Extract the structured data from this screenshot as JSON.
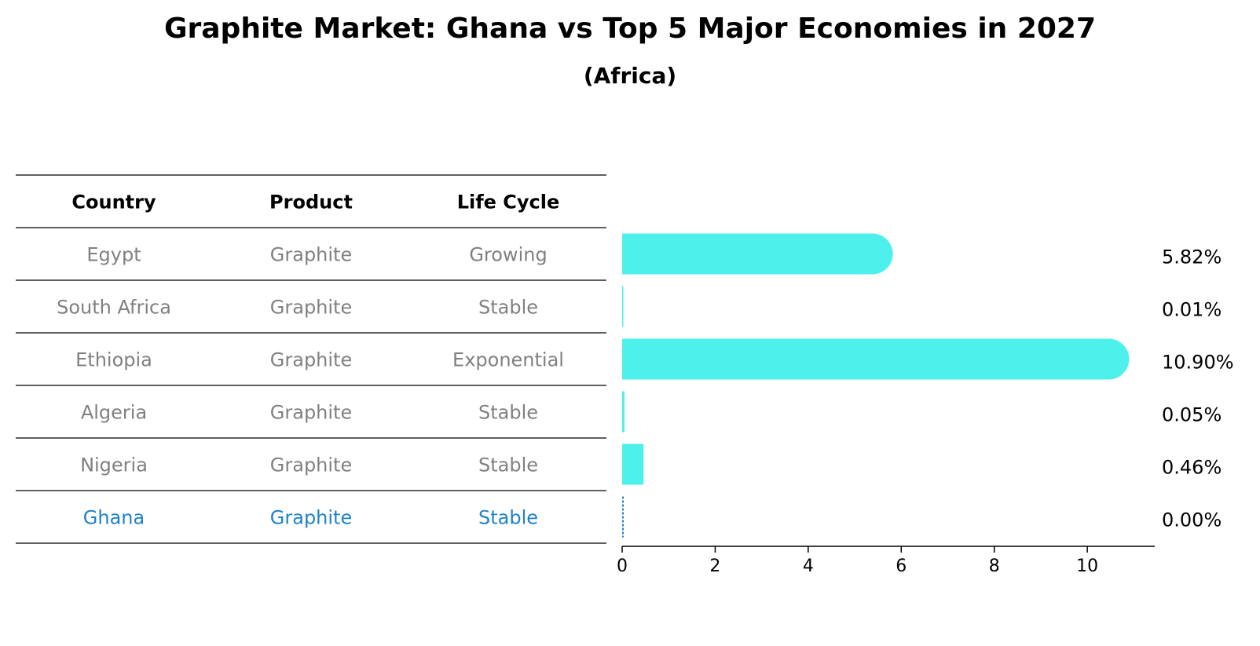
{
  "title": "Graphite Market: Ghana vs Top 5 Major Economies in 2027",
  "subtitle": "(Africa)",
  "table": {
    "headers": [
      "Country",
      "Product",
      "Life Cycle"
    ],
    "rows": [
      {
        "country": "Egypt",
        "product": "Graphite",
        "life_cycle": "Growing",
        "highlight": false
      },
      {
        "country": "South Africa",
        "product": "Graphite",
        "life_cycle": "Stable",
        "highlight": false
      },
      {
        "country": "Ethiopia",
        "product": "Graphite",
        "life_cycle": "Exponential",
        "highlight": false
      },
      {
        "country": "Algeria",
        "product": "Graphite",
        "life_cycle": "Stable",
        "highlight": false
      },
      {
        "country": "Nigeria",
        "product": "Graphite",
        "life_cycle": "Stable",
        "highlight": false
      },
      {
        "country": "Ghana",
        "product": "Graphite",
        "life_cycle": "Stable",
        "highlight": true
      }
    ]
  },
  "colors": {
    "bar": "#4ef0eb",
    "highlight_text": "#1f82c8",
    "normal_text": "#808080",
    "ghana_line": "#1f82c8"
  },
  "chart_data": {
    "type": "bar",
    "orientation": "horizontal",
    "categories": [
      "Egypt",
      "South Africa",
      "Ethiopia",
      "Algeria",
      "Nigeria",
      "Ghana"
    ],
    "values": [
      5.82,
      0.01,
      10.9,
      0.05,
      0.46,
      0.0
    ],
    "value_labels": [
      "5.82%",
      "0.01%",
      "10.90%",
      "0.05%",
      "0.46%",
      "0.00%"
    ],
    "xlim": [
      0,
      11.45
    ],
    "xticks": [
      0,
      2,
      4,
      6,
      8,
      10
    ]
  }
}
